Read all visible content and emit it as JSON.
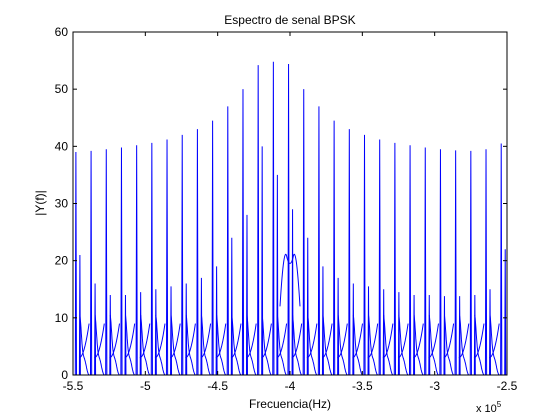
{
  "chart_data": {
    "type": "line",
    "title": "Espectro de senal BPSK",
    "xlabel": "Frecuencia(Hz)",
    "ylabel": "|Y(f)|",
    "x_exponent_label": "x 10",
    "x_exponent_power": "5",
    "xlim": [
      -5.5,
      -2.5
    ],
    "ylim": [
      0,
      60
    ],
    "xticks": [
      -5.5,
      -5,
      -4.5,
      -4,
      -3.5,
      -3,
      -2.5
    ],
    "xtick_labels": [
      "-5.5",
      "-5",
      "-4.5",
      "-4",
      "-3.5",
      "-3",
      "-2.5"
    ],
    "yticks": [
      0,
      10,
      20,
      30,
      40,
      50,
      60
    ],
    "ytick_labels": [
      "0",
      "10",
      "20",
      "30",
      "40",
      "50",
      "60"
    ],
    "grid": false,
    "line_color": "#0000ff",
    "series": [
      {
        "name": "|Y(f)|",
        "spike_x": [
          -5.48,
          -5.375,
          -5.27,
          -5.165,
          -5.06,
          -4.955,
          -4.85,
          -4.745,
          -4.64,
          -4.535,
          -4.43,
          -4.325,
          -4.22,
          -4.115,
          -4.01,
          -3.905,
          -3.8,
          -3.695,
          -3.59,
          -3.485,
          -3.38,
          -3.275,
          -3.17,
          -3.065,
          -2.96,
          -2.855,
          -2.75,
          -2.645,
          -2.54
        ],
        "spike_peak": [
          39,
          39.2,
          39.5,
          39.8,
          40.2,
          40.6,
          41.2,
          42,
          43,
          44.5,
          47,
          50,
          54.2,
          54.8,
          54.4,
          50,
          47,
          44.5,
          43,
          42,
          41.2,
          40.6,
          40.2,
          39.8,
          39.5,
          39.3,
          39.2,
          39.5,
          40.5
        ],
        "spike_secondary": [
          21,
          16,
          14,
          14,
          14.5,
          15,
          15.5,
          16,
          17,
          19,
          24,
          28,
          40,
          35,
          29,
          24,
          19,
          17,
          16,
          15.5,
          15,
          14.5,
          14,
          14,
          13.8,
          13.8,
          14,
          15,
          22
        ],
        "center_hump": {
          "x": -4.0,
          "value": 20.5
        }
      }
    ]
  }
}
